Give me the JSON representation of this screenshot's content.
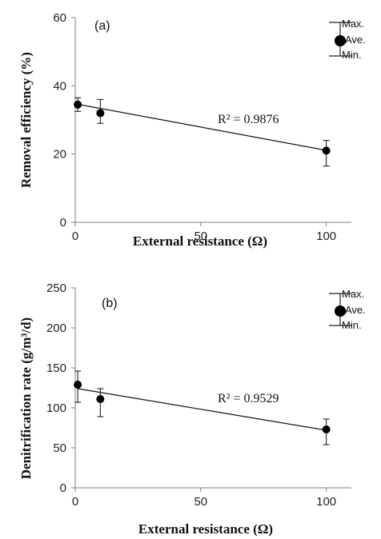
{
  "legend": {
    "max_label": "Max.",
    "ave_label": "Ave.",
    "min_label": "Min."
  },
  "chart_data": [
    {
      "type": "scatter",
      "panel_label": "(a)",
      "xlabel": "External resistance (Ω)",
      "ylabel": "Removal efficiency (%)",
      "xlim": [
        0,
        110
      ],
      "ylim": [
        0,
        60
      ],
      "xticks": [
        0,
        50,
        100
      ],
      "yticks": [
        0,
        20,
        40,
        60
      ],
      "grid": false,
      "legend_position": "top-right",
      "points": [
        {
          "x": 1,
          "y": 34.5,
          "min": 32.5,
          "max": 36.5
        },
        {
          "x": 10,
          "y": 32,
          "min": 29,
          "max": 36
        },
        {
          "x": 100,
          "y": 21,
          "min": 16.5,
          "max": 24
        }
      ],
      "trendline": {
        "x": [
          1,
          100
        ],
        "y": [
          34.6,
          21.1
        ]
      },
      "annotation": "R² = 0.9876"
    },
    {
      "type": "scatter",
      "panel_label": "(b)",
      "xlabel": "External resistance (Ω)",
      "ylabel": "Denitrification rate (g/m³/d)",
      "xlim": [
        0,
        110
      ],
      "ylim": [
        0,
        250
      ],
      "xticks": [
        0,
        50,
        100
      ],
      "yticks": [
        0,
        50,
        100,
        150,
        200,
        250
      ],
      "grid": false,
      "legend_position": "top-right",
      "points": [
        {
          "x": 1,
          "y": 129,
          "min": 107,
          "max": 146
        },
        {
          "x": 10,
          "y": 111,
          "min": 89,
          "max": 124
        },
        {
          "x": 100,
          "y": 73,
          "min": 54,
          "max": 86
        }
      ],
      "trendline": {
        "x": [
          1,
          100
        ],
        "y": [
          124,
          72
        ]
      },
      "annotation": "R² = 0.9529"
    }
  ]
}
